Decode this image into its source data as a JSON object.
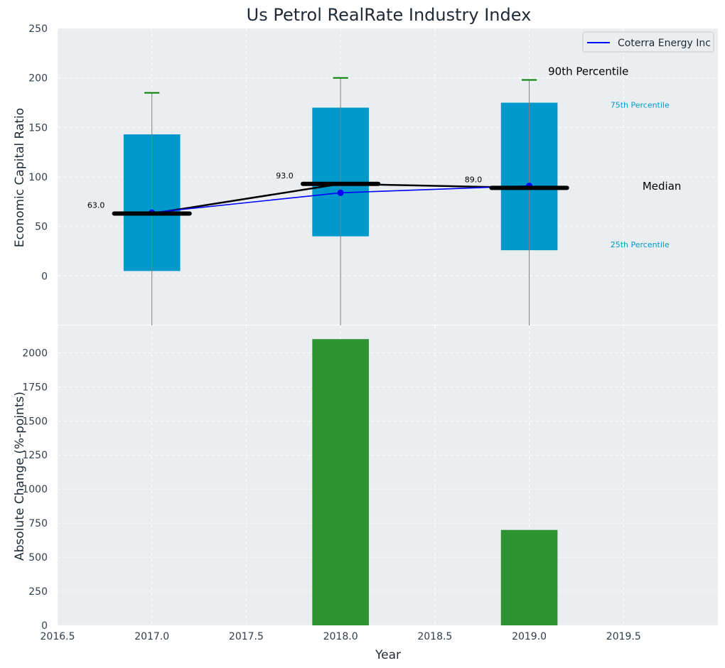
{
  "chart_data": [
    {
      "type": "box",
      "title": "Us Petrol RealRate Industry Index",
      "ylabel": "Economic Capital Ratio",
      "ylim": [
        -50,
        250
      ],
      "yticks": [
        0,
        50,
        100,
        150,
        200,
        250
      ],
      "xlim": [
        2016.5,
        2020.0
      ],
      "grid": true,
      "legend_position": "top-right",
      "boxes": [
        {
          "x": 2017.0,
          "p25": 5,
          "p75": 143,
          "p90": 185,
          "median": 63.0,
          "median_label": "63.0"
        },
        {
          "x": 2018.0,
          "p25": 40,
          "p75": 170,
          "p90": 200,
          "median": 93.0,
          "median_label": "93.0"
        },
        {
          "x": 2019.0,
          "p25": 26,
          "p75": 175,
          "p90": 198,
          "median": 89.0,
          "median_label": "89.0"
        }
      ],
      "median_line_values": [
        63.0,
        93.0,
        89.0
      ],
      "series": [
        {
          "name": "Coterra Energy Inc",
          "x": [
            2017.0,
            2018.0,
            2019.0
          ],
          "values": [
            64,
            84,
            91
          ],
          "color": "#0000ff"
        }
      ],
      "annotations": {
        "p90": {
          "text": "90th Percentile",
          "x": 2019.1,
          "y": 203
        },
        "p75": {
          "text": "75th Percentile",
          "x": 2019.43,
          "y": 170
        },
        "median": {
          "text": "Median",
          "x": 2019.6,
          "y": 87
        },
        "p25": {
          "text": "25th Percentile",
          "x": 2019.43,
          "y": 29
        }
      },
      "colors": {
        "box": "#0099cc",
        "whisker_cap": "#007f00",
        "median": "#000000",
        "background": "#eaeef0"
      }
    },
    {
      "type": "bar",
      "ylabel": "Absolute Change (%-points)",
      "xlabel": "Year",
      "x": [
        2018.0,
        2019.0
      ],
      "values": [
        2100,
        700
      ],
      "ylim": [
        0,
        2200
      ],
      "yticks": [
        0,
        250,
        500,
        750,
        1000,
        1250,
        1500,
        1750,
        2000
      ],
      "xlim": [
        2016.5,
        2020.0
      ],
      "xticks": [
        2016.5,
        2017.0,
        2017.5,
        2018.0,
        2018.5,
        2019.0,
        2019.5
      ],
      "xtick_labels": [
        "2016.5",
        "2017.0",
        "2017.5",
        "2018.0",
        "2018.5",
        "2019.0",
        "2019.5"
      ],
      "grid": true,
      "colors": {
        "bar": "#2e9433"
      }
    }
  ]
}
